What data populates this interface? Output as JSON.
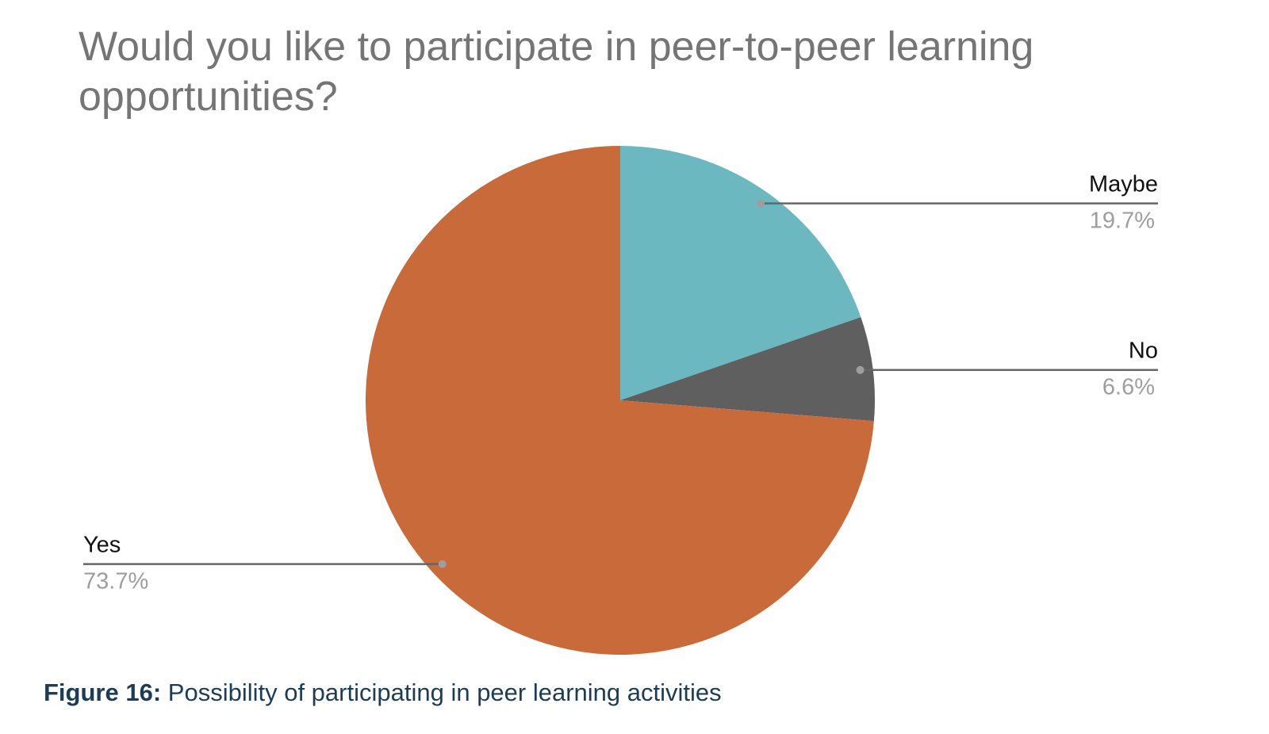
{
  "chart_data": {
    "type": "pie",
    "title": "Would you like to participate in peer-to-peer learning opportunities?",
    "categories": [
      "Maybe",
      "No",
      "Yes"
    ],
    "values": [
      19.7,
      6.6,
      73.7
    ],
    "value_labels": [
      "19.7%",
      "6.6%",
      "73.7%"
    ],
    "colors": [
      "#6cb8c0",
      "#5f5f5f",
      "#c96a3a"
    ]
  },
  "caption": {
    "label": "Figure 16:",
    "text": "Possibility of participating in peer learning activities"
  }
}
